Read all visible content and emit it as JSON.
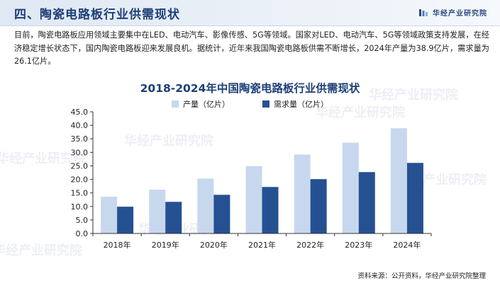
{
  "header": {
    "title": "四、陶瓷电路板行业供需现状",
    "brand": "华经产业研究院"
  },
  "intro": "目前，陶瓷电路板应用领域主要集中在LED、电动汽车、影像传感、5G等领域。国家对LED、电动汽车、5G等领域政策支持发展，在经济稳定增长状态下，国内陶瓷电路板迎来发展良机。据统计，近年来我国陶瓷电路板供需不断增长，2024年产量为38.9亿片，需求量为26.1亿片。",
  "watermark": "华经产业研究院",
  "chart_data": {
    "type": "bar",
    "title": "2018-2024年中国陶瓷电路板行业供需现状",
    "categories": [
      "2018年",
      "2019年",
      "2020年",
      "2021年",
      "2022年",
      "2023年",
      "2024年"
    ],
    "series": [
      {
        "name": "产量（亿片）",
        "color": "#c7d8ee",
        "values": [
          13.6,
          16.2,
          20.3,
          24.9,
          29.2,
          33.6,
          38.9
        ]
      },
      {
        "name": "需求量（亿片）",
        "color": "#255192",
        "values": [
          9.9,
          11.7,
          14.3,
          17.2,
          20.1,
          22.7,
          26.1
        ]
      }
    ],
    "ylim": [
      0,
      45
    ],
    "yticks": [
      "0.0",
      "5.0",
      "10.0",
      "15.0",
      "20.0",
      "25.0",
      "30.0",
      "35.0",
      "40.0",
      "45.0"
    ],
    "xlabel": "",
    "ylabel": "",
    "grid": false,
    "legend": "top-center"
  },
  "source": "资料来源：公开资料，华经产业研究院整理"
}
